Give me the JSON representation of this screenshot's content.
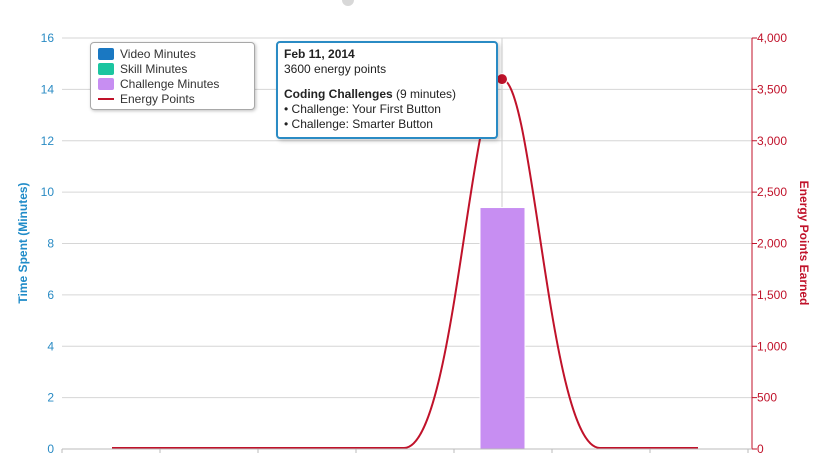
{
  "chart_data": {
    "type": "bar+line",
    "ylabel_left": "Time Spent (Minutes)",
    "ylabel_right": "Energy Points Earned",
    "ylim_left": [
      0,
      16
    ],
    "ylim_right": [
      0,
      4000
    ],
    "yticks_left": [
      "0",
      "2",
      "4",
      "6",
      "8",
      "10",
      "12",
      "14",
      "16"
    ],
    "yticks_right": [
      "0",
      "500",
      "1,000",
      "1,500",
      "2,000",
      "2,500",
      "3,000",
      "3,500",
      "4,000"
    ],
    "grid": true,
    "legend_placement": "top-left",
    "series": [
      {
        "name": "Video Minutes",
        "kind": "bar",
        "color": "#1a78c2",
        "values": [
          0
        ]
      },
      {
        "name": "Skill Minutes",
        "kind": "bar",
        "color": "#1bc5a0",
        "values": [
          0
        ]
      },
      {
        "name": "Challenge Minutes",
        "kind": "bar",
        "color": "#c78ef2",
        "values": [
          9.4
        ]
      },
      {
        "name": "Energy Points",
        "kind": "line",
        "color": "#c0122a",
        "highlight_value": 3600
      }
    ],
    "tooltip": {
      "date": "Feb 11, 2014",
      "points": "3600 energy points",
      "section_title": "Coding Challenges",
      "section_detail": " (9 minutes)",
      "items": [
        "• Challenge: Your First Button",
        "• Challenge: Smarter Button"
      ]
    }
  }
}
